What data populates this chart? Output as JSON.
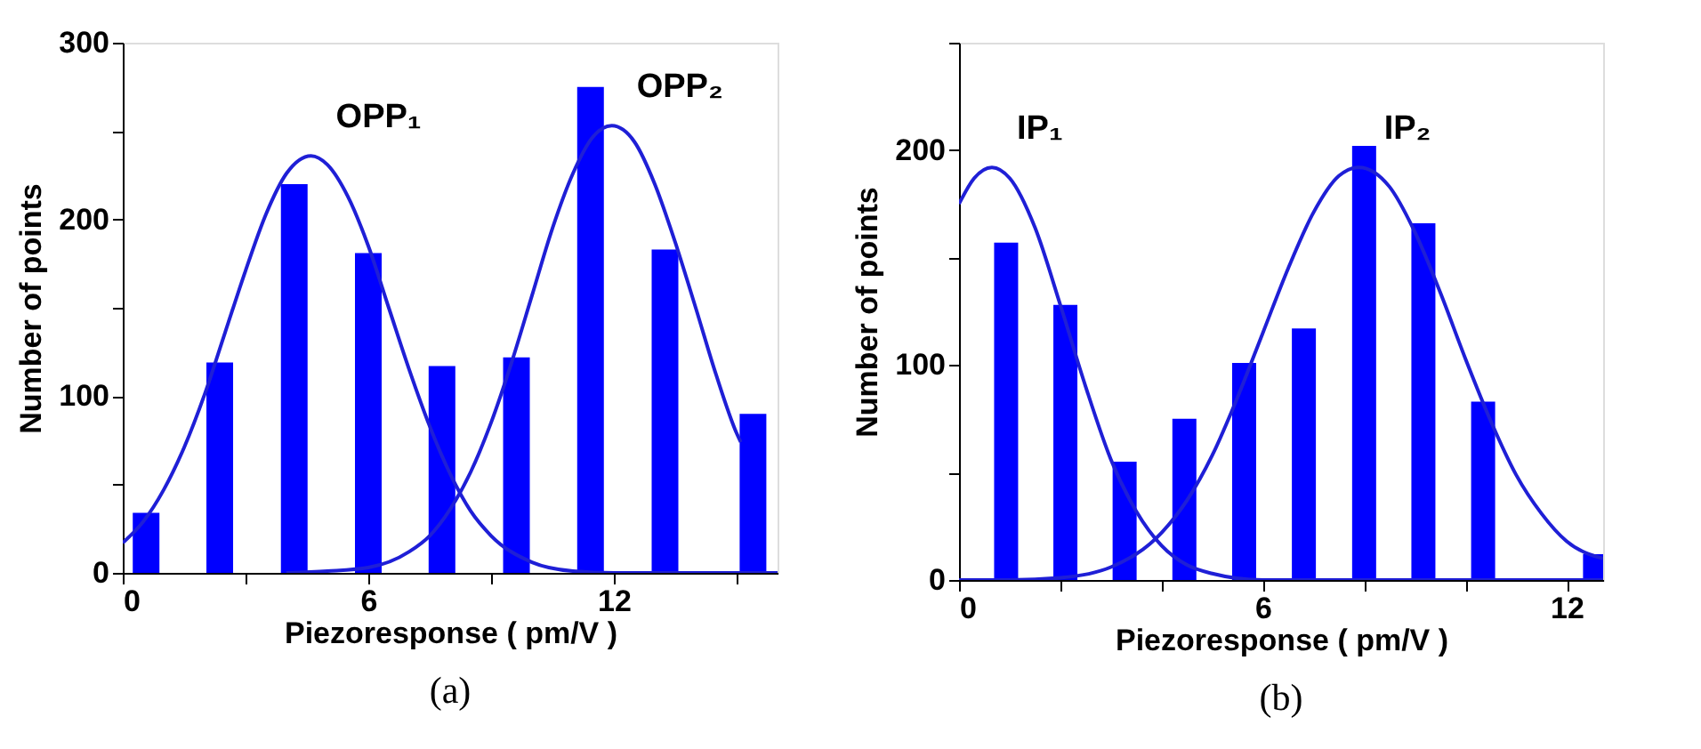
{
  "chart_data": [
    {
      "type": "bar",
      "title": "(a)",
      "xlabel": "Piezoresponse ( pm/V )",
      "ylabel": "Number of points",
      "xlim": [
        0,
        16
      ],
      "ylim": [
        0,
        300
      ],
      "xticks": [
        0,
        {
          "value": 3,
          "label": null
        },
        6,
        {
          "value": 9,
          "label": null
        },
        12,
        {
          "value": 15,
          "label": null
        }
      ],
      "yticks": [
        0,
        {
          "value": 50,
          "label": null
        },
        100,
        {
          "value": 150,
          "label": null
        },
        200,
        {
          "value": 250,
          "label": null
        },
        300
      ],
      "series": [
        {
          "color": "#0000ff",
          "x": [
            0.57,
            2.37,
            4.19,
            6.0,
            7.8,
            9.62,
            11.43,
            13.25,
            15.4
          ],
          "values": [
            34,
            119,
            220,
            181,
            117,
            122,
            275,
            183,
            90
          ]
        },
        {
          "type": "line",
          "color": "#1f1fd6",
          "x": [
            0,
            0.5,
            1,
            1.5,
            2,
            2.5,
            3,
            3.5,
            4,
            4.6,
            5,
            5.5,
            6,
            6.5,
            7,
            7.5,
            8,
            8.5,
            9,
            10,
            11,
            12,
            16
          ],
          "values": [
            17,
            29,
            47,
            71,
            101,
            136,
            171,
            203,
            226,
            236,
            231,
            213,
            185,
            150,
            115,
            83,
            56,
            35,
            21,
            6,
            1,
            0,
            0
          ]
        },
        {
          "type": "line",
          "color": "#1f1fd6",
          "x": [
            4,
            5,
            6,
            7,
            7.5,
            8,
            8.5,
            9,
            9.5,
            10,
            10.5,
            11,
            11.5,
            11.95,
            12.5,
            13,
            13.5,
            14,
            14.5,
            15,
            15.1
          ],
          "values": [
            0,
            1,
            3,
            12,
            21,
            36,
            57,
            85,
            119,
            157,
            195,
            226,
            247,
            253,
            244,
            220,
            187,
            150,
            112,
            79,
            74
          ]
        }
      ],
      "annotations": [
        "OPP₁",
        "OPP₂"
      ]
    },
    {
      "type": "bar",
      "title": "(b)",
      "xlabel": "Piezoresponse ( pm/V )",
      "ylabel": "Number of points",
      "xlim": [
        0,
        12.72
      ],
      "ylim": [
        0,
        250
      ],
      "xticks": [
        0,
        {
          "value": 2,
          "label": null
        },
        {
          "value": 4,
          "label": null
        },
        6,
        {
          "value": 8,
          "label": null
        },
        {
          "value": 10,
          "label": null
        },
        12
      ],
      "yticks": [
        0,
        {
          "value": 50,
          "label": null
        },
        100,
        {
          "value": 150,
          "label": null
        },
        200,
        {
          "value": 250,
          "label": null
        }
      ],
      "series": [
        {
          "color": "#0000ff",
          "x": [
            0.93,
            2.1,
            3.27,
            4.45,
            5.63,
            6.81,
            8.0,
            9.17,
            10.35,
            12.56
          ],
          "values": [
            157,
            128,
            55,
            75,
            101,
            117,
            202,
            166,
            83,
            12
          ]
        },
        {
          "type": "line",
          "color": "#1f1fd6",
          "x": [
            0,
            0.3,
            0.65,
            1,
            1.5,
            2,
            2.5,
            3,
            3.5,
            4,
            4.5,
            5,
            6,
            7,
            12.72
          ],
          "values": [
            175,
            187,
            192,
            187,
            164,
            128,
            90,
            56,
            32,
            16,
            7,
            3,
            0,
            0,
            0
          ]
        },
        {
          "type": "line",
          "color": "#1f1fd6",
          "x": [
            0,
            1,
            2,
            3,
            4,
            4.5,
            5,
            5.5,
            6,
            6.5,
            7,
            7.5,
            7.9,
            8.5,
            9,
            9.5,
            10,
            10.5,
            11,
            11.5,
            12,
            12.72
          ],
          "values": [
            0,
            0,
            1,
            6,
            22,
            37,
            58,
            85,
            115,
            145,
            171,
            188,
            192,
            183,
            162,
            134,
            103,
            74,
            49,
            31,
            18,
            10
          ]
        }
      ],
      "annotations": [
        "IP₁",
        "IP₂"
      ]
    }
  ]
}
